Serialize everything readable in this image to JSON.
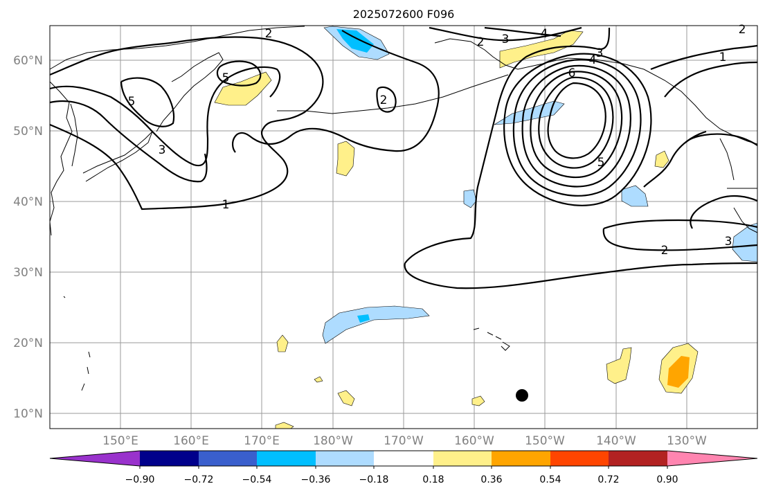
{
  "map": {
    "title": "2025072600 F096",
    "lat_labels": [
      "60°N",
      "50°N",
      "40°N",
      "30°N",
      "20°N",
      "10°N"
    ],
    "lon_labels": [
      "150°E",
      "160°E",
      "170°E",
      "180°W",
      "170°W",
      "160°W",
      "150°W",
      "140°W",
      "130°W"
    ],
    "contour_labels": [
      "1",
      "2",
      "3",
      "4",
      "5",
      "6"
    ],
    "marker": "storm-center-dot"
  },
  "colorbar": {
    "ticks": [
      "−0.90",
      "−0.72",
      "−0.54",
      "−0.36",
      "−0.18",
      "0.18",
      "0.36",
      "0.54",
      "0.72",
      "0.90"
    ],
    "colors": [
      "#9932cc",
      "#00008b",
      "#3a5fcd",
      "#00bfff",
      "#aedcff",
      "#ffffff",
      "#fff08a",
      "#ffa500",
      "#ff4500",
      "#b22222",
      "#ff85b0"
    ]
  }
}
